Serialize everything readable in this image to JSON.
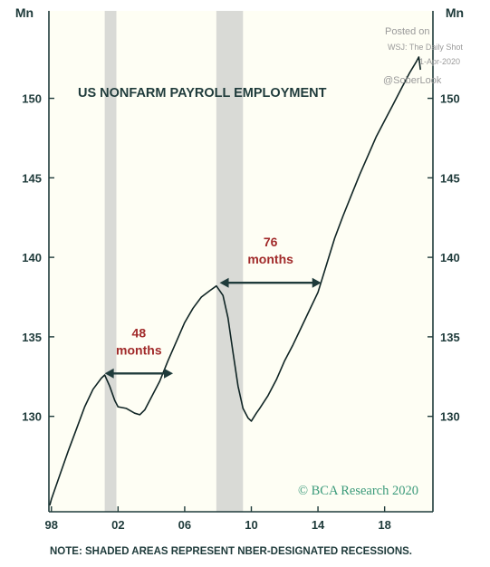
{
  "chart_data": {
    "type": "line",
    "title": "US NONFARM PAYROLL EMPLOYMENT",
    "y_unit_left": "Mn",
    "y_unit_right": "Mn",
    "ylim": [
      124,
      155.5
    ],
    "xlim": [
      1997.85,
      2020.9
    ],
    "y_ticks": [
      130,
      135,
      140,
      145,
      150
    ],
    "y_tick_labels": [
      "130",
      "135",
      "140",
      "145",
      "150"
    ],
    "x_ticks": [
      1998,
      2002,
      2006,
      2010,
      2014,
      2018
    ],
    "x_tick_labels": [
      "98",
      "02",
      "06",
      "10",
      "14",
      "18"
    ],
    "grid": false,
    "recessions": [
      {
        "start": 2001.2,
        "end": 2001.9
      },
      {
        "start": 2007.9,
        "end": 2009.5
      }
    ],
    "series": [
      {
        "values": [
          [
            1997.9,
            124.4
          ],
          [
            1998.0,
            124.8
          ],
          [
            1998.5,
            126.3
          ],
          [
            1999.0,
            127.8
          ],
          [
            1999.5,
            129.2
          ],
          [
            2000.0,
            130.6
          ],
          [
            2000.5,
            131.7
          ],
          [
            2001.0,
            132.4
          ],
          [
            2001.2,
            132.6
          ],
          [
            2001.5,
            131.9
          ],
          [
            2001.8,
            131.0
          ],
          [
            2002.0,
            130.6
          ],
          [
            2002.5,
            130.5
          ],
          [
            2003.0,
            130.2
          ],
          [
            2003.3,
            130.1
          ],
          [
            2003.6,
            130.4
          ],
          [
            2004.0,
            131.2
          ],
          [
            2004.5,
            132.2
          ],
          [
            2005.0,
            133.5
          ],
          [
            2005.5,
            134.7
          ],
          [
            2006.0,
            135.9
          ],
          [
            2006.5,
            136.8
          ],
          [
            2007.0,
            137.5
          ],
          [
            2007.5,
            137.9
          ],
          [
            2007.9,
            138.2
          ],
          [
            2008.3,
            137.6
          ],
          [
            2008.6,
            136.2
          ],
          [
            2008.9,
            134.0
          ],
          [
            2009.2,
            131.9
          ],
          [
            2009.5,
            130.5
          ],
          [
            2009.8,
            129.9
          ],
          [
            2010.0,
            129.7
          ],
          [
            2010.3,
            130.2
          ],
          [
            2010.5,
            130.5
          ],
          [
            2011.0,
            131.3
          ],
          [
            2011.5,
            132.3
          ],
          [
            2012.0,
            133.5
          ],
          [
            2012.5,
            134.5
          ],
          [
            2013.0,
            135.6
          ],
          [
            2013.5,
            136.7
          ],
          [
            2014.0,
            137.8
          ],
          [
            2014.5,
            139.5
          ],
          [
            2015.0,
            141.2
          ],
          [
            2015.5,
            142.6
          ],
          [
            2016.0,
            143.9
          ],
          [
            2016.5,
            145.2
          ],
          [
            2017.0,
            146.4
          ],
          [
            2017.5,
            147.6
          ],
          [
            2018.0,
            148.6
          ],
          [
            2018.5,
            149.6
          ],
          [
            2019.0,
            150.6
          ],
          [
            2019.5,
            151.6
          ],
          [
            2019.9,
            152.3
          ],
          [
            2020.05,
            152.6
          ],
          [
            2020.15,
            151.8
          ]
        ]
      }
    ],
    "annotations": [
      {
        "line1": "48",
        "line2": "months",
        "from": 2001.2,
        "to": 2005.3,
        "y": 132.7
      },
      {
        "line1": "76",
        "line2": "months",
        "from": 2008.1,
        "to": 2014.2,
        "y": 138.4
      }
    ],
    "note": "NOTE: SHADED AREAS REPRESENT NBER-DESIGNATED RECESSIONS.",
    "source": "© BCA Research 2020",
    "watermark": [
      "Posted on",
      "WSJ: The Daily Shot",
      "1-Apr-2020",
      "@SoberLook"
    ],
    "colors": {
      "line": "#102525",
      "frame": "#1f3b3b",
      "recession": "#d9dad6",
      "panel": "#fefef4",
      "annotation": "#a12a2a",
      "arrow": "#1f3b3b",
      "brand": "#3a9a7a"
    }
  }
}
